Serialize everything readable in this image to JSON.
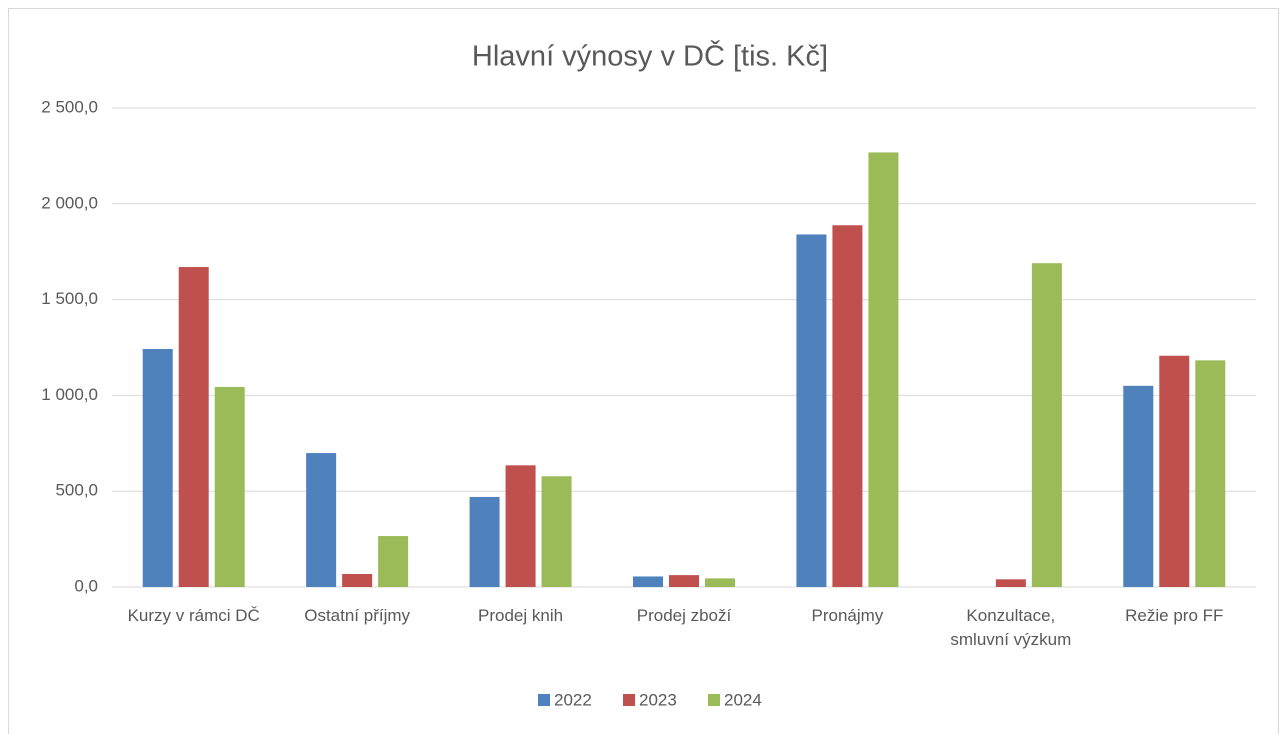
{
  "chart_data": {
    "type": "bar",
    "title": "Hlavní výnosy v DČ [tis. Kč]",
    "categories": [
      "Kurzy v rámci DČ",
      "Ostatní příjmy",
      "Prodej knih",
      "Prodej zboží",
      "Pronájmy",
      "Konzultace, smluvní výzkum",
      "Režie pro FF"
    ],
    "series": [
      {
        "name": "2022",
        "color": "#4f81bd",
        "values": [
          1242,
          699,
          470,
          55,
          1840,
          null,
          1050
        ]
      },
      {
        "name": "2023",
        "color": "#c0504d",
        "values": [
          1670,
          68,
          635,
          62,
          1888,
          40,
          1207
        ]
      },
      {
        "name": "2024",
        "color": "#9bbb59",
        "values": [
          1044,
          266,
          578,
          45,
          2268,
          1690,
          1183
        ]
      }
    ],
    "ylim": [
      0,
      2500
    ],
    "yticks": [
      {
        "value": 0,
        "label": "0,0"
      },
      {
        "value": 500,
        "label": "500,0"
      },
      {
        "value": 1000,
        "label": "1 000,0"
      },
      {
        "value": 1500,
        "label": "1 500,0"
      },
      {
        "value": 2000,
        "label": "2 000,0"
      },
      {
        "value": 2500,
        "label": "2 500,0"
      }
    ],
    "grid": true,
    "legend": "bottom"
  }
}
